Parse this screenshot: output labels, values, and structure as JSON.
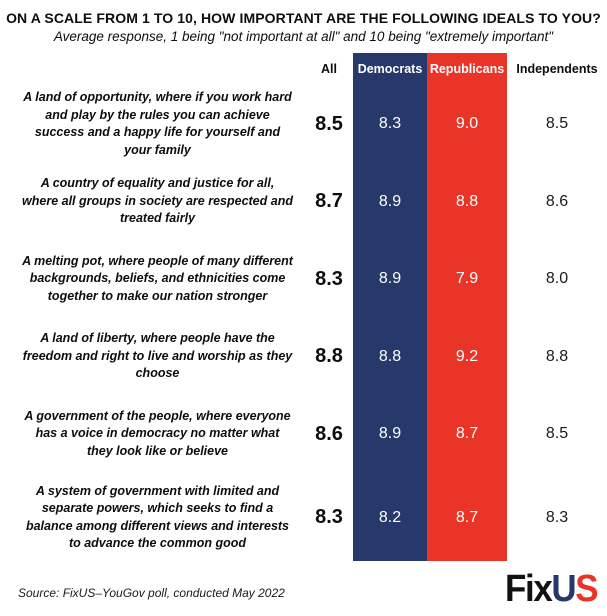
{
  "title": "ON A SCALE FROM 1 TO 10, HOW IMPORTANT ARE THE FOLLOWING IDEALS TO YOU?",
  "subtitle": "Average response, 1 being \"not important at all\" and 10 being \"extremely important\"",
  "colors": {
    "democrat_blue": "#27396B",
    "republican_red": "#E93528",
    "band_value_text": "#FFFFFF",
    "text": "#0D0D0D"
  },
  "columns": {
    "all": "All",
    "democrats": "Democrats",
    "republicans": "Republicans",
    "independents": "Independents"
  },
  "rows": [
    {
      "statement": "A land of opportunity, where if you work hard and play by the rules you can achieve success and a happy life for yourself and your family",
      "all": "8.5",
      "dem": "8.3",
      "rep": "9.0",
      "ind": "8.5"
    },
    {
      "statement": "A country of equality and justice for all, where all groups in society are respected and treated fairly",
      "all": "8.7",
      "dem": "8.9",
      "rep": "8.8",
      "ind": "8.6"
    },
    {
      "statement": "A melting pot, where people of many different backgrounds, beliefs, and ethnicities come together to make our nation stronger",
      "all": "8.3",
      "dem": "8.9",
      "rep": "7.9",
      "ind": "8.0"
    },
    {
      "statement": "A land of liberty, where people have the freedom and right to live and worship as they choose",
      "all": "8.8",
      "dem": "8.8",
      "rep": "9.2",
      "ind": "8.8"
    },
    {
      "statement": "A government of the people, where everyone has a voice in democracy no matter what they look like or believe",
      "all": "8.6",
      "dem": "8.9",
      "rep": "8.7",
      "ind": "8.5"
    },
    {
      "statement": "A system of government with limited and separate powers, which seeks to find a balance among different views and interests to advance the common good",
      "all": "8.3",
      "dem": "8.2",
      "rep": "8.7",
      "ind": "8.3"
    }
  ],
  "chart_data": {
    "type": "table",
    "title": "ON A SCALE FROM 1 TO 10, HOW IMPORTANT ARE THE FOLLOWING IDEALS TO YOU?",
    "subtitle": "Average response, 1 being \"not important at all\" and 10 being \"extremely important\"",
    "value_range": [
      1,
      10
    ],
    "categories": [
      "A land of opportunity, where if you work hard and play by the rules you can achieve success and a happy life for yourself and your family",
      "A country of equality and justice for all, where all groups in society are respected and treated fairly",
      "A melting pot, where people of many different backgrounds, beliefs, and ethnicities come together to make our nation stronger",
      "A land of liberty, where people have the freedom and right to live and worship as they choose",
      "A government of the people, where everyone has a voice in democracy no matter what they look like or believe",
      "A system of government with limited and separate powers, which seeks to find a balance among different views and interests to advance the common good"
    ],
    "series": [
      {
        "name": "All",
        "values": [
          8.5,
          8.7,
          8.3,
          8.8,
          8.6,
          8.3
        ]
      },
      {
        "name": "Democrats",
        "values": [
          8.3,
          8.9,
          8.9,
          8.8,
          8.9,
          8.2
        ]
      },
      {
        "name": "Republicans",
        "values": [
          9.0,
          8.8,
          7.9,
          9.2,
          8.7,
          8.7
        ]
      },
      {
        "name": "Independents",
        "values": [
          8.5,
          8.6,
          8.0,
          8.8,
          8.5,
          8.3
        ]
      }
    ]
  },
  "footer": {
    "source": "Source: FixUS–YouGov poll, conducted May 2022",
    "logo": {
      "part1": "Fix",
      "part2": "U",
      "part3": "S"
    }
  }
}
